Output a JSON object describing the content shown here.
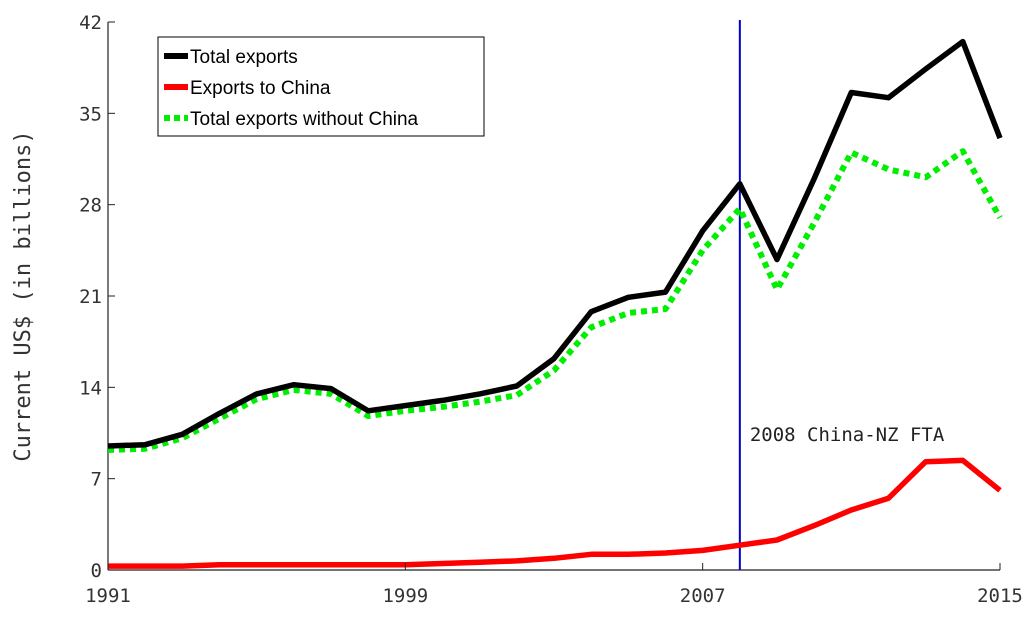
{
  "chart_data": {
    "type": "line",
    "ylabel": "Current US$ (in billions)",
    "xlabel": "",
    "title": "",
    "xlim": [
      1991,
      2015
    ],
    "ylim": [
      0,
      42
    ],
    "xticks": [
      "1991",
      "1999",
      "2007",
      "2015"
    ],
    "yticks": [
      "0",
      "7",
      "14",
      "21",
      "28",
      "35",
      "42"
    ],
    "grid": false,
    "legend_position": "top-left",
    "x": [
      1991,
      1992,
      1993,
      1994,
      1995,
      1996,
      1997,
      1998,
      1999,
      2000,
      2001,
      2002,
      2003,
      2004,
      2005,
      2006,
      2007,
      2008,
      2009,
      2010,
      2011,
      2012,
      2013,
      2014,
      2015
    ],
    "series": [
      {
        "name": "Total exports",
        "color": "#000000",
        "style": "solid",
        "values": [
          9.5,
          9.6,
          10.4,
          12.0,
          13.5,
          14.2,
          13.9,
          12.2,
          12.6,
          13.0,
          13.5,
          14.1,
          16.2,
          19.8,
          20.9,
          21.3,
          26.0,
          29.6,
          23.8,
          30.0,
          36.6,
          36.2,
          38.4,
          40.5,
          33.1
        ]
      },
      {
        "name": "Exports to China",
        "color": "#ff0000",
        "style": "solid",
        "values": [
          0.3,
          0.3,
          0.3,
          0.4,
          0.4,
          0.4,
          0.4,
          0.4,
          0.4,
          0.5,
          0.6,
          0.7,
          0.9,
          1.2,
          1.2,
          1.3,
          1.5,
          1.9,
          2.3,
          3.4,
          4.6,
          5.5,
          8.3,
          8.4,
          6.1
        ]
      },
      {
        "name": "Total exports without China",
        "color": "#00ee00",
        "style": "dotted",
        "values": [
          9.2,
          9.3,
          10.1,
          11.6,
          13.1,
          13.8,
          13.5,
          11.8,
          12.2,
          12.5,
          12.9,
          13.4,
          15.3,
          18.6,
          19.7,
          20.0,
          24.5,
          27.7,
          21.5,
          26.6,
          32.0,
          30.7,
          30.1,
          32.1,
          27.0
        ]
      }
    ],
    "annotations": [
      {
        "text": "2008 China-NZ FTA",
        "x": 2008,
        "line_color": "#0000cc"
      }
    ]
  }
}
